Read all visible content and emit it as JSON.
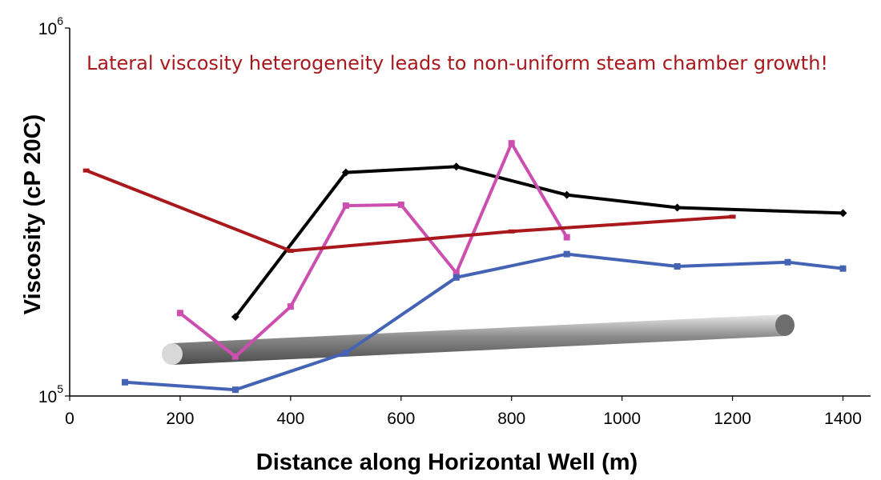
{
  "chart_data": {
    "type": "line",
    "xlabel": "Distance along Horizontal Well (m)",
    "ylabel": "Viscosity (cP 20C)",
    "xlim": [
      0,
      1450
    ],
    "ylim": [
      100000,
      1000000
    ],
    "y_scale": "log",
    "x_ticks": [
      "0",
      "200",
      "400",
      "600",
      "800",
      "1000",
      "1200",
      "1400"
    ],
    "y_ticks": [
      {
        "base": "10",
        "exp": "5"
      },
      {
        "base": "10",
        "exp": "6"
      }
    ],
    "annotation": "Lateral viscosity heterogeneity leads to non-uniform steam chamber growth!",
    "grid": false,
    "series": [
      {
        "color": "#000000",
        "marker": "diamond",
        "x": [
          300,
          500,
          700,
          900,
          1100,
          1400
        ],
        "y": [
          164000,
          405000,
          420000,
          352000,
          325000,
          314000
        ]
      },
      {
        "color": "#cc4fb0",
        "marker": "square",
        "x": [
          200,
          300,
          400,
          500,
          600,
          700,
          800,
          900
        ],
        "y": [
          168000,
          128000,
          175000,
          329000,
          331000,
          216000,
          486000,
          270000
        ]
      },
      {
        "color": "#a8181c",
        "marker": "dash",
        "x": [
          30,
          400,
          800,
          1200
        ],
        "y": [
          410000,
          248000,
          280000,
          307000
        ]
      },
      {
        "color": "#4463b4",
        "marker": "square",
        "x": [
          100,
          300,
          500,
          700,
          900,
          1100,
          1300,
          1400
        ],
        "y": [
          109000,
          104000,
          131000,
          210000,
          243000,
          225000,
          231000,
          222000
        ]
      }
    ]
  }
}
